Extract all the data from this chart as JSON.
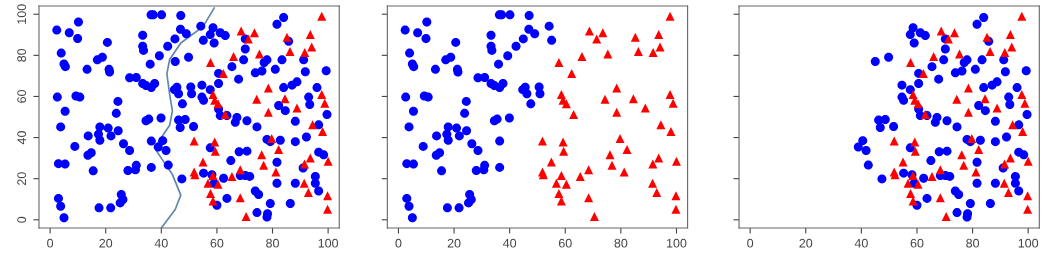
{
  "chart_data": [
    {
      "type": "scatter",
      "xlim": [
        -4,
        104
      ],
      "ylim": [
        -4,
        104
      ],
      "xticks": [
        0,
        20,
        40,
        60,
        80,
        100
      ],
      "yticks": [
        0,
        20,
        40,
        60,
        80,
        100
      ],
      "grid": false,
      "legend": false,
      "series": [
        {
          "type": "scatter",
          "marker": "circle",
          "color": "#0000ff",
          "x": [
            2.4,
            6.9,
            10.2,
            9.9,
            4,
            5,
            5.5,
            13.3,
            17,
            18.8,
            20.6,
            21.2,
            21.4,
            28.6,
            31,
            33.3,
            34.5,
            36.4,
            37.6,
            36,
            33.3,
            33.3,
            33.6,
            36.3,
            37.1,
            40.1,
            39.3,
            42.3,
            44.9,
            2.6,
            9.3,
            10.7,
            24.4,
            23.8,
            5.4,
            3.8,
            34.5,
            35.5,
            39.9,
            17.9,
            17.4,
            17.9,
            13.7,
            20.9,
            21.9,
            24.5,
            8.9,
            26.4,
            28.6,
            13.6,
            14.8,
            15.5,
            3,
            5.4,
            28,
            31,
            30.7,
            36.4,
            36.4,
            3,
            3.8,
            5,
            17.6,
            21.8,
            25.6,
            26.2,
            25.2,
            47,
            54.2,
            55.1,
            46.9,
            49,
            45.6,
            46.2,
            47.6,
            50.6,
            50.9,
            44.7,
            84,
            81.6,
            58.6,
            57.6,
            61.2,
            63,
            59,
            70.2,
            85.8,
            70.2,
            69.6,
            78,
            77,
            83.4,
            91.2,
            45,
            49.8,
            65.4,
            67.8,
            60.6,
            73.8,
            76.2,
            81,
            91.8,
            99.3,
            88.8,
            87,
            84,
            60.6,
            54.6,
            57.6,
            54.6,
            55.2,
            60.6,
            61.2,
            63.6,
            67.2,
            70.8,
            66.6,
            74.4,
            82.2,
            84.6,
            93,
            93.4,
            96,
            99.6,
            88.2,
            96.6,
            46.2,
            48.6,
            46.8,
            51.6,
            78,
            79.2,
            82.8,
            88.2,
            92.2,
            57.6,
            68,
            70.8,
            96.6,
            98.4,
            81.6,
            65,
            91,
            55.2,
            58.2,
            62.4,
            68.4,
            70.2,
            71.8,
            81.6,
            88.2,
            95.4,
            95.4,
            96.6,
            59,
            63.6,
            73.8,
            75,
            60,
            79.2,
            86.4,
            74.4,
            78,
            78.2,
            42.5,
            47.4,
            40.5,
            38.9,
            41.7
          ],
          "values": [
            92.3,
            91,
            96.2,
            88.2,
            81.1,
            75.8,
            74.5,
            73.2,
            77.8,
            79.1,
            86.3,
            73.2,
            71.9,
            69.1,
            69.2,
            66.3,
            65.3,
            64.3,
            66.3,
            75.7,
            89.8,
            84.4,
            82.4,
            99.7,
            99.7,
            99.7,
            79.8,
            84.4,
            88,
            59.7,
            60.2,
            59.7,
            57.6,
            51.8,
            52.8,
            45.2,
            48.2,
            49,
            49.5,
            45.2,
            41.6,
            38.7,
            40.8,
            44.6,
            40.8,
            43.3,
            35.7,
            37,
            33.7,
            31.4,
            32.6,
            23.8,
            27.3,
            27.1,
            24,
            26.5,
            24.3,
            25.5,
            38.3,
            10.4,
            6.6,
            1,
            5.8,
            5.8,
            12.3,
            9.9,
            8.2,
            99.4,
            94.2,
            87.3,
            92.7,
            90.5,
            64.5,
            61.3,
            56.4,
            64.6,
            61.3,
            63.3,
            98.4,
            95.1,
            93.4,
            90.1,
            91,
            89.6,
            86,
            88,
            86.8,
            83.1,
            77.8,
            77.8,
            76.5,
            77.8,
            77.8,
            77,
            79.1,
            74.5,
            68.4,
            71.2,
            71.5,
            72.4,
            73.2,
            72,
            72.5,
            67.1,
            65.5,
            64.3,
            66.3,
            65.5,
            63.3,
            59.7,
            58.1,
            53.9,
            50.7,
            50.7,
            49.8,
            48.2,
            47.4,
            45.2,
            55.6,
            53.1,
            59.7,
            56.1,
            64.3,
            51.2,
            47.9,
            46.2,
            48.5,
            48.8,
            44.9,
            45.4,
            39.1,
            38,
            38.7,
            38,
            40.3,
            35,
            33.1,
            33.4,
            32.9,
            31.6,
            28,
            28.8,
            25.2,
            22.7,
            21.9,
            20.2,
            21.5,
            21.5,
            21.1,
            17.8,
            17.8,
            21.1,
            17.8,
            14,
            17.8,
            10.4,
            14,
            12.3,
            7.1,
            7.9,
            7.9,
            3.5,
            1.3,
            3,
            26.6,
            19.9,
            38.5,
            35.4,
            33.7
          ]
        },
        {
          "type": "scatter",
          "marker": "triangle",
          "color": "#ff0000",
          "x": [
            97.7,
            68.7,
            73.5,
            71.3,
            85.2,
            93.6,
            94.1,
            86.3,
            91.6,
            75.3,
            66,
            57.7,
            62.3,
            78.5,
            74.3,
            84.5,
            88.8,
            78.5,
            58.6,
            59.2,
            60.4,
            63,
            97.7,
            98.8,
            94.4,
            98,
            79.7,
            82.2,
            76.1,
            76.8,
            81.2,
            91.5,
            93.6,
            100,
            91.4,
            92.9,
            99.8,
            99.8,
            51.8,
            59.2,
            59.4,
            55,
            51.8,
            52.1,
            58.6,
            56.8,
            60.4,
            57.7,
            58.6,
            65.4,
            68.4,
            68.4,
            70.5
          ],
          "values": [
            99,
            91.8,
            91,
            88,
            88.8,
            90.1,
            84,
            81.9,
            81.4,
            80.6,
            79.4,
            76.5,
            71.2,
            64.1,
            58.6,
            58.9,
            54.4,
            52.3,
            60.9,
            58.1,
            56.4,
            51.2,
            61,
            56.7,
            46.2,
            42.9,
            39.6,
            34.2,
            31.7,
            26.5,
            23.2,
            27.1,
            30.1,
            28.5,
            17.8,
            13.3,
            11.7,
            5.1,
            38.3,
            37.8,
            33.4,
            28.1,
            23.2,
            21.9,
            21.5,
            17.8,
            17.3,
            12.8,
            9.2,
            21.1,
            24.3,
            10.7,
            1.6
          ]
        },
        {
          "type": "line",
          "color": "#5f87a8",
          "x": [
            40,
            45,
            47,
            44,
            40,
            38,
            39,
            43,
            44,
            43,
            42,
            43,
            47,
            55,
            59
          ],
          "values": [
            -4,
            5,
            12,
            22,
            30,
            34,
            38,
            46,
            53,
            61,
            71,
            78,
            86,
            94,
            103
          ]
        }
      ]
    },
    {
      "type": "scatter",
      "xlim": [
        -4,
        104
      ],
      "ylim": [
        -4,
        104
      ],
      "xticks": [
        0,
        20,
        40,
        60,
        80,
        100
      ],
      "yticks": [
        0,
        20,
        40,
        60,
        80,
        100
      ],
      "tick_labels": "x",
      "grid": false,
      "legend": false,
      "series": [
        {
          "type": "scatter",
          "marker": "circle",
          "color": "#0000ff",
          "x": [
            2.4,
            6.9,
            10.2,
            9.9,
            4,
            5,
            5.5,
            13.3,
            17,
            18.8,
            20.6,
            21.2,
            21.4,
            28.6,
            31,
            33.3,
            34.5,
            36.4,
            37.6,
            36,
            33.3,
            33.3,
            33.6,
            36.3,
            37.1,
            40.1,
            39.3,
            42.3,
            44.9,
            2.6,
            9.3,
            10.7,
            24.4,
            23.8,
            5.4,
            3.8,
            34.5,
            35.5,
            39.9,
            17.9,
            17.4,
            17.9,
            13.7,
            20.9,
            21.9,
            24.5,
            8.9,
            26.4,
            28.6,
            13.6,
            14.8,
            15.5,
            3,
            5.4,
            28,
            31,
            30.7,
            36.4,
            36.4,
            3,
            3.8,
            5,
            17.6,
            21.8,
            25.6,
            26.2,
            25.2,
            47,
            54.2,
            55.1,
            46.9,
            49,
            45.6,
            46.2,
            47.6,
            50.6,
            50.9,
            44.7
          ],
          "values": [
            92.3,
            91,
            96.2,
            88.2,
            81.1,
            75.8,
            74.5,
            73.2,
            77.8,
            79.1,
            86.3,
            73.2,
            71.9,
            69.1,
            69.2,
            66.3,
            65.3,
            64.3,
            66.3,
            75.7,
            89.8,
            84.4,
            82.4,
            99.7,
            99.7,
            99.7,
            79.8,
            84.4,
            88,
            59.7,
            60.2,
            59.7,
            57.6,
            51.8,
            52.8,
            45.2,
            48.2,
            49,
            49.5,
            45.2,
            41.6,
            38.7,
            40.8,
            44.6,
            40.8,
            43.3,
            35.7,
            37,
            33.7,
            31.4,
            32.6,
            23.8,
            27.3,
            27.1,
            24,
            26.5,
            24.3,
            25.5,
            38.3,
            10.4,
            6.6,
            1,
            5.8,
            5.8,
            12.3,
            9.9,
            8.2,
            99.4,
            94.2,
            87.3,
            92.7,
            90.5,
            64.5,
            61.3,
            56.4,
            64.6,
            61.3,
            63.3
          ]
        },
        {
          "type": "scatter",
          "marker": "triangle",
          "color": "#ff0000",
          "x": [
            97.7,
            68.7,
            73.5,
            71.3,
            85.2,
            93.6,
            94.1,
            86.3,
            91.6,
            75.3,
            66,
            57.7,
            62.3,
            78.5,
            74.3,
            84.5,
            88.8,
            78.5,
            58.6,
            59.2,
            60.4,
            63,
            97.7,
            98.8,
            94.4,
            98,
            79.7,
            82.2,
            76.1,
            76.8,
            81.2,
            91.5,
            93.6,
            100,
            91.4,
            92.9,
            99.8,
            99.8,
            51.8,
            59.2,
            59.4,
            55,
            51.8,
            52.1,
            58.6,
            56.8,
            60.4,
            57.7,
            58.6,
            65.4,
            68.4,
            68.4,
            70.5
          ],
          "values": [
            99,
            91.8,
            91,
            88,
            88.8,
            90.1,
            84,
            81.9,
            81.4,
            80.6,
            79.4,
            76.5,
            71.2,
            64.1,
            58.6,
            58.9,
            54.4,
            52.3,
            60.9,
            58.1,
            56.4,
            51.2,
            61,
            56.7,
            46.2,
            42.9,
            39.6,
            34.2,
            31.7,
            26.5,
            23.2,
            27.1,
            30.1,
            28.5,
            17.8,
            13.3,
            11.7,
            5.1,
            38.3,
            37.8,
            33.4,
            28.1,
            23.2,
            21.9,
            21.5,
            17.8,
            17.3,
            12.8,
            9.2,
            21.1,
            24.3,
            10.7,
            1.6
          ]
        }
      ]
    },
    {
      "type": "scatter",
      "xlim": [
        -4,
        104
      ],
      "ylim": [
        -4,
        104
      ],
      "xticks": [
        0,
        20,
        40,
        60,
        80,
        100
      ],
      "yticks": [
        0,
        20,
        40,
        60,
        80,
        100
      ],
      "tick_labels": "x",
      "grid": false,
      "legend": false,
      "series": [
        {
          "type": "scatter",
          "marker": "circle",
          "color": "#0000ff",
          "x": [
            84,
            81.6,
            58.6,
            57.6,
            61.2,
            63,
            59,
            70.2,
            85.8,
            70.2,
            69.6,
            78,
            77,
            83.4,
            91.2,
            45,
            49.8,
            65.4,
            67.8,
            60.6,
            73.8,
            76.2,
            81,
            91.8,
            99.3,
            88.8,
            87,
            84,
            60.6,
            54.6,
            57.6,
            54.6,
            55.2,
            60.6,
            61.2,
            63.6,
            67.2,
            70.8,
            66.6,
            74.4,
            82.2,
            84.6,
            93,
            93.4,
            96,
            99.6,
            88.2,
            96.6,
            46.2,
            48.6,
            46.8,
            51.6,
            78,
            79.2,
            82.8,
            88.2,
            92.2,
            57.6,
            68,
            70.8,
            96.6,
            98.4,
            81.6,
            65,
            91,
            55.2,
            58.2,
            62.4,
            68.4,
            70.2,
            71.8,
            81.6,
            88.2,
            95.4,
            95.4,
            96.6,
            59,
            63.6,
            73.8,
            75,
            60,
            79.2,
            86.4,
            74.4,
            78,
            78.2,
            42.5,
            47.4,
            40.5,
            38.9,
            41.7
          ],
          "values": [
            98.4,
            95.1,
            93.4,
            90.1,
            91,
            89.6,
            86,
            88,
            86.8,
            83.1,
            77.8,
            77.8,
            76.5,
            77.8,
            77.8,
            77,
            79.1,
            74.5,
            68.4,
            71.2,
            71.5,
            72.4,
            73.2,
            72,
            72.5,
            67.1,
            65.5,
            64.3,
            66.3,
            65.5,
            63.3,
            59.7,
            58.1,
            53.9,
            50.7,
            50.7,
            49.8,
            48.2,
            47.4,
            45.2,
            55.6,
            53.1,
            59.7,
            56.1,
            64.3,
            51.2,
            47.9,
            46.2,
            48.5,
            48.8,
            44.9,
            45.4,
            39.1,
            38,
            38.7,
            38,
            40.3,
            35,
            33.1,
            33.4,
            32.9,
            31.6,
            28,
            28.8,
            25.2,
            22.7,
            21.9,
            20.2,
            21.5,
            21.5,
            21.1,
            17.8,
            17.8,
            21.1,
            17.8,
            14,
            17.8,
            10.4,
            14,
            12.3,
            7.1,
            7.9,
            7.9,
            3.5,
            1.3,
            3,
            26.6,
            19.9,
            38.5,
            35.4,
            33.7
          ]
        },
        {
          "type": "scatter",
          "marker": "triangle",
          "color": "#ff0000",
          "x": [
            97.7,
            68.7,
            73.5,
            71.3,
            85.2,
            93.6,
            94.1,
            86.3,
            91.6,
            75.3,
            66,
            57.7,
            62.3,
            78.5,
            74.3,
            84.5,
            88.8,
            78.5,
            58.6,
            59.2,
            60.4,
            63,
            97.7,
            98.8,
            94.4,
            98,
            79.7,
            82.2,
            76.1,
            76.8,
            81.2,
            91.5,
            93.6,
            100,
            91.4,
            92.9,
            99.8,
            99.8,
            51.8,
            59.2,
            59.4,
            55,
            51.8,
            52.1,
            58.6,
            56.8,
            60.4,
            57.7,
            58.6,
            65.4,
            68.4,
            68.4,
            70.5
          ],
          "values": [
            99,
            91.8,
            91,
            88,
            88.8,
            90.1,
            84,
            81.9,
            81.4,
            80.6,
            79.4,
            76.5,
            71.2,
            64.1,
            58.6,
            58.9,
            54.4,
            52.3,
            60.9,
            58.1,
            56.4,
            51.2,
            61,
            56.7,
            46.2,
            42.9,
            39.6,
            34.2,
            31.7,
            26.5,
            23.2,
            27.1,
            30.1,
            28.5,
            17.8,
            13.3,
            11.7,
            5.1,
            38.3,
            37.8,
            33.4,
            28.1,
            23.2,
            21.9,
            21.5,
            17.8,
            17.3,
            12.8,
            9.2,
            21.1,
            24.3,
            10.7,
            1.6
          ]
        }
      ]
    }
  ]
}
